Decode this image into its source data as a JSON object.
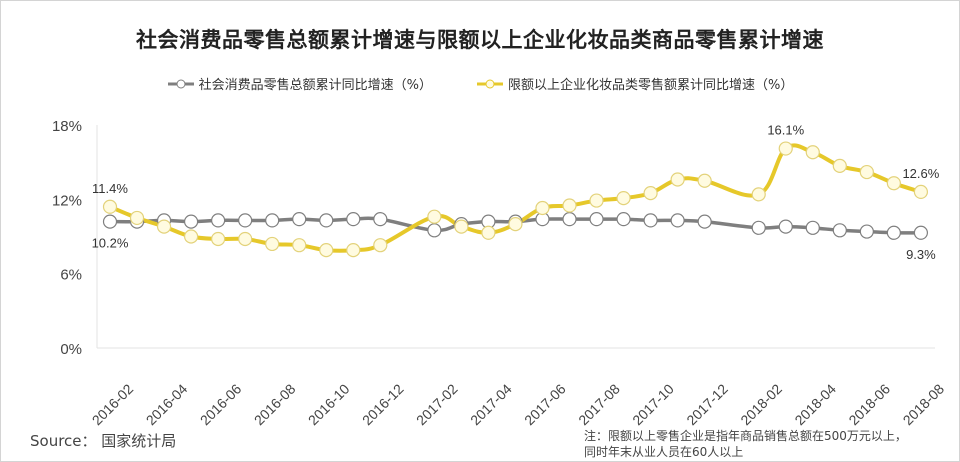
{
  "title": "社会消费品零售总额累计增速与限额以上企业化妆品类商品零售累计增速",
  "legend": [
    {
      "label": "社会消费品零售总额累计同比增速（%）",
      "color": "#7f7f7f"
    },
    {
      "label": "限额以上企业化妆品类零售额累计同比增速（%）",
      "color": "#e6c82a"
    }
  ],
  "footer": {
    "source": "Source： 国家统计局",
    "note_line1": "注：限额以上零售企业是指年商品销售总额在500万元以上，",
    "note_line2": "同时年末从业人员在60人以上"
  },
  "chart_data": {
    "type": "line",
    "title": "社会消费品零售总额累计增速与限额以上企业化妆品类商品零售累计增速",
    "xlabel": "",
    "ylabel": "",
    "ylim": [
      0,
      18
    ],
    "yticks": [
      "0%",
      "6%",
      "12%",
      "18%"
    ],
    "xtick_labels": [
      "2016-02",
      "2016-04",
      "2016-06",
      "2016-08",
      "2016-10",
      "2016-12",
      "2017-02",
      "2017-04",
      "2017-06",
      "2017-08",
      "2017-10",
      "2017-12",
      "2018-02",
      "2018-04",
      "2018-06",
      "2018-08"
    ],
    "x": [
      "2016-02",
      "2016-03",
      "2016-04",
      "2016-05",
      "2016-06",
      "2016-07",
      "2016-08",
      "2016-09",
      "2016-10",
      "2016-11",
      "2016-12",
      "2017-02",
      "2017-03",
      "2017-04",
      "2017-05",
      "2017-06",
      "2017-07",
      "2017-08",
      "2017-09",
      "2017-10",
      "2017-11",
      "2017-12",
      "2018-02",
      "2018-03",
      "2018-04",
      "2018-05",
      "2018-06",
      "2018-07",
      "2018-08"
    ],
    "x_slot": [
      0,
      1,
      2,
      3,
      4,
      5,
      6,
      7,
      8,
      9,
      10,
      12,
      13,
      14,
      15,
      16,
      17,
      18,
      19,
      20,
      21,
      22,
      24,
      25,
      26,
      27,
      28,
      29,
      30
    ],
    "series": [
      {
        "name": "社会消费品零售总额累计同比增速（%）",
        "color": "#7f7f7f",
        "values": [
          10.2,
          10.2,
          10.3,
          10.2,
          10.3,
          10.3,
          10.3,
          10.4,
          10.3,
          10.4,
          10.4,
          9.5,
          10.0,
          10.2,
          10.2,
          10.4,
          10.4,
          10.4,
          10.4,
          10.3,
          10.3,
          10.2,
          9.7,
          9.8,
          9.7,
          9.5,
          9.4,
          9.3,
          9.3
        ]
      },
      {
        "name": "限额以上企业化妆品类零售额累计同比增速（%）",
        "color": "#e6c82a",
        "values": [
          11.4,
          10.5,
          9.8,
          9.0,
          8.8,
          8.8,
          8.4,
          8.3,
          7.9,
          7.9,
          8.3,
          10.6,
          9.8,
          9.3,
          10.0,
          11.3,
          11.5,
          11.9,
          12.1,
          12.5,
          13.6,
          13.5,
          12.4,
          16.1,
          15.8,
          14.7,
          14.2,
          13.3,
          12.6
        ]
      }
    ],
    "annotations": [
      {
        "series": 1,
        "index": 0,
        "text": "11.4%",
        "pos": "above"
      },
      {
        "series": 0,
        "index": 0,
        "text": "10.2%",
        "pos": "below"
      },
      {
        "series": 1,
        "index": 23,
        "text": "16.1%",
        "pos": "above"
      },
      {
        "series": 1,
        "index": 28,
        "text": "12.6%",
        "pos": "above"
      },
      {
        "series": 0,
        "index": 28,
        "text": "9.3%",
        "pos": "below"
      }
    ],
    "grid": false,
    "legend_position": "top"
  }
}
